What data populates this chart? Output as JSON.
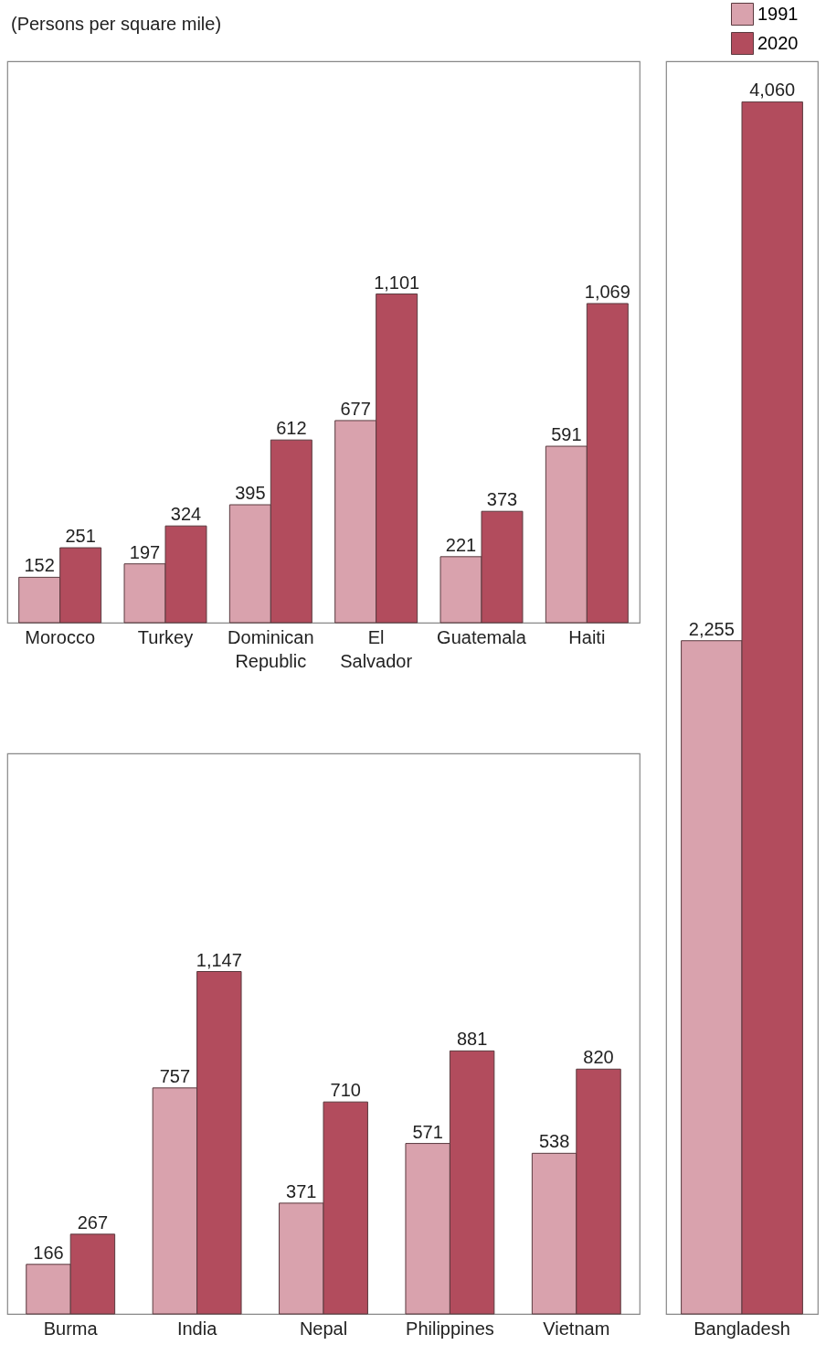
{
  "chart_data": [
    {
      "type": "bar",
      "subtitle": "(Persons per square mile)",
      "categories": [
        "Morocco",
        "Turkey",
        "Dominican Republic",
        "El Salvador",
        "Guatemala",
        "Haiti"
      ],
      "series": [
        {
          "color": "#d9a2ad",
          "values": [
            152,
            197,
            395,
            677,
            221,
            591
          ],
          "value_labels": [
            "152",
            "197",
            "395",
            "677",
            "221",
            "591"
          ]
        },
        {
          "color": "#b24c5d",
          "values": [
            251,
            324,
            612,
            1101,
            373,
            1069
          ],
          "value_labels": [
            "251",
            "324",
            "612",
            "1,101",
            "373",
            "1,069"
          ]
        }
      ]
    },
    {
      "type": "bar",
      "categories": [
        "Burma",
        "India",
        "Nepal",
        "Philippines",
        "Vietnam"
      ],
      "series": [
        {
          "color": "#d9a2ad",
          "values": [
            166,
            757,
            371,
            571,
            538
          ],
          "value_labels": [
            "166",
            "757",
            "371",
            "571",
            "538"
          ]
        },
        {
          "color": "#b24c5d",
          "values": [
            267,
            1147,
            710,
            881,
            820
          ],
          "value_labels": [
            "267",
            "1,147",
            "710",
            "881",
            "820"
          ]
        }
      ]
    },
    {
      "type": "bar",
      "categories": [
        "Bangladesh"
      ],
      "series": [
        {
          "name": "1991",
          "color": "#d9a2ad",
          "values": [
            2255
          ],
          "value_labels": [
            "2,255"
          ]
        },
        {
          "name": "2020",
          "color": "#b24c5d",
          "values": [
            4060
          ],
          "value_labels": [
            "4,060"
          ]
        }
      ],
      "legend": "top right"
    }
  ]
}
